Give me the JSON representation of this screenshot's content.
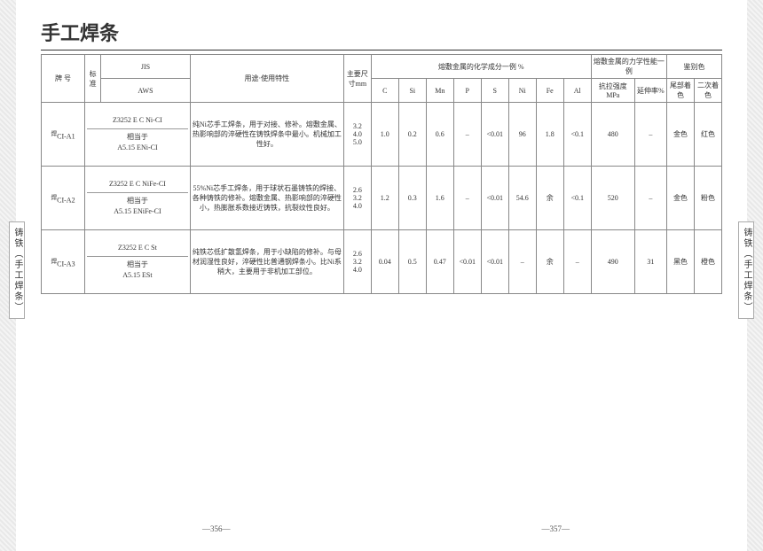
{
  "title": "手工焊条",
  "side_tab_left": "铸铁（手工焊条）",
  "side_tab_right": "铸铁（手工焊条）",
  "page_left": "—356—",
  "page_right": "—357—",
  "headers": {
    "brand": "牌 号",
    "std": "标准",
    "jis": "JIS",
    "aws": "AWS",
    "use": "用途·使用特性",
    "dia": "主要尺寸mm",
    "chem_group": "熔敷金属的化学成分一例   %",
    "mech_group": "熔敷金属的力学性能一例",
    "color_group": "鉴别色",
    "c": "C",
    "si": "Si",
    "mn": "Mn",
    "p": "P",
    "s": "S",
    "ni": "Ni",
    "fe": "Fe",
    "al": "Al",
    "tensile": "抗拉强度MPa",
    "elong": "延伸率%",
    "tail": "尾部着色",
    "second": "二次着色"
  },
  "rows": [
    {
      "brand": "<sup>焊</sup>CI-A1",
      "jis": "Z3252 E C Ni-CI",
      "aws_prefix": "相当于",
      "aws": "A5.15 ENi-CI",
      "use": "纯Ni芯手工焊条，用于对接、修补。熔敷金属、热影响部的淬硬性在铸铁焊条中最小。机械加工性好。",
      "dia": "3.2\n4.0\n5.0",
      "c": "1.0",
      "si": "0.2",
      "mn": "0.6",
      "p": "–",
      "s": "<0.01",
      "ni": "96",
      "fe": "1.8",
      "al": "<0.1",
      "tensile": "480",
      "elong": "–",
      "tail": "金色",
      "second": "红色"
    },
    {
      "brand": "<sup>焊</sup>CI-A2",
      "jis": "Z3252 E C NiFe-CI",
      "aws_prefix": "相当于",
      "aws": "A5.15 ENiFe-CI",
      "use": "55%Ni芯手工焊条，用于球状石墨铸铁的焊接、各种铸铁的修补。熔敷金属、热影响部的淬硬性小，热膨胀系数接近铸铁，抗裂纹性良好。",
      "dia": "2.6\n3.2\n4.0",
      "c": "1.2",
      "si": "0.3",
      "mn": "1.6",
      "p": "–",
      "s": "<0.01",
      "ni": "54.6",
      "fe": "余",
      "al": "<0.1",
      "tensile": "520",
      "elong": "–",
      "tail": "金色",
      "second": "粉色"
    },
    {
      "brand": "<sup>焊</sup>CI-A3",
      "jis": "Z3252 E C St",
      "aws_prefix": "相当于",
      "aws": "A5.15 ESt",
      "use": "纯铁芯低扩散氢焊条，用于小缺陷的修补。与母材润湿性良好，淬硬性比普通钢焊条小。比Ni系稍大，主要用于非机加工部位。",
      "dia": "2.6\n3.2\n4.0",
      "c": "0.04",
      "si": "0.5",
      "mn": "0.47",
      "p": "<0.01",
      "s": "<0.01",
      "ni": "–",
      "fe": "余",
      "al": "–",
      "tensile": "490",
      "elong": "31",
      "tail": "黑色",
      "second": "橙色"
    }
  ],
  "colwidths": {
    "brand": 38,
    "std": 14,
    "jisaws": 78,
    "use": 134,
    "dia": 24,
    "chem": 24,
    "tensile": 38,
    "elong": 28,
    "color": 24
  }
}
